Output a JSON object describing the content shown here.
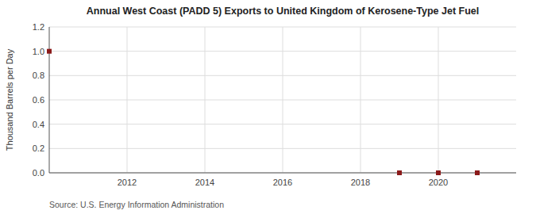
{
  "chart_data": {
    "type": "scatter",
    "title": "Annual West Coast (PADD 5) Exports to United Kingdom of Kerosene-Type Jet Fuel",
    "y_label": "Thousand Barrels per Day",
    "annotations": [
      "Source: U.S. Energy Information Administration"
    ],
    "x": [
      2010,
      2019,
      2020,
      2021
    ],
    "values": [
      1.0,
      0.0,
      0.0,
      0.0
    ],
    "color": "#8B1A1A",
    "marker": "square",
    "xlim": [
      2010,
      2022
    ],
    "ylim": [
      0.0,
      1.2
    ],
    "xticks": [
      2012,
      2014,
      2016,
      2018,
      2020
    ],
    "yticks": [
      {
        "value": 0.0,
        "label": "0.0"
      },
      0.2,
      0.4,
      0.6,
      0.8,
      {
        "value": 1.0,
        "label": "1.0"
      },
      1.2
    ],
    "grid": true
  }
}
